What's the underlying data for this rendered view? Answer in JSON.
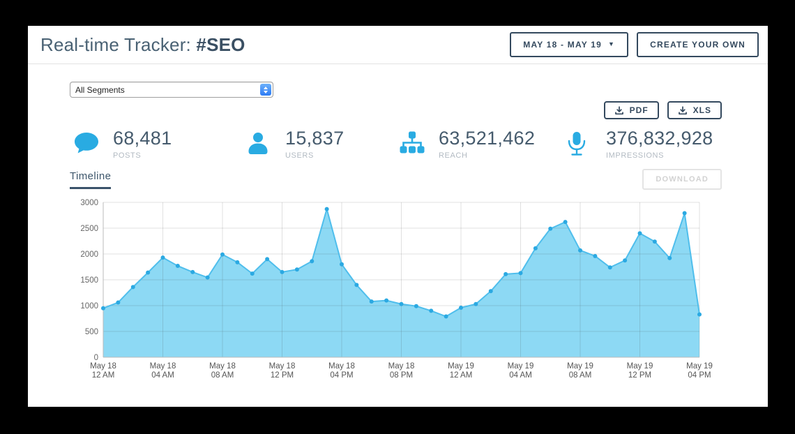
{
  "header": {
    "title_prefix": "Real-time Tracker: ",
    "title_tag": "#SEO",
    "date_range_button": "MAY 18 - MAY 19",
    "date_caret": "▼",
    "create_button": "CREATE YOUR OWN"
  },
  "toolbar": {
    "segments_select_value": "All Segments",
    "pdf_button": "PDF",
    "xls_button": "XLS"
  },
  "stats": [
    {
      "icon": "speech-bubble-icon",
      "value": "68,481",
      "label": "POSTS"
    },
    {
      "icon": "user-icon",
      "value": "15,837",
      "label": "USERS"
    },
    {
      "icon": "sitemap-icon",
      "value": "63,521,462",
      "label": "REACH"
    },
    {
      "icon": "microphone-icon",
      "value": "376,832,928",
      "label": "IMPRESSIONS"
    }
  ],
  "tabs": {
    "timeline": "Timeline",
    "download_button": "DOWNLOAD"
  },
  "colors": {
    "accent_blue": "#29ABE2",
    "navy": "#34495e",
    "title_slate": "#4a6274",
    "stat_value": "#465b6d",
    "stat_label": "#b2bac2"
  },
  "chart_data": {
    "type": "area",
    "title": "Timeline",
    "xlabel": "",
    "ylabel": "",
    "ylim": [
      0,
      3000
    ],
    "grid": true,
    "legend": false,
    "x": [
      "May 18 12 AM",
      "May 18 01 AM",
      "May 18 02 AM",
      "May 18 03 AM",
      "May 18 04 AM",
      "May 18 05 AM",
      "May 18 06 AM",
      "May 18 07 AM",
      "May 18 08 AM",
      "May 18 09 AM",
      "May 18 10 AM",
      "May 18 11 AM",
      "May 18 12 PM",
      "May 18 01 PM",
      "May 18 02 PM",
      "May 18 03 PM",
      "May 18 04 PM",
      "May 18 05 PM",
      "May 18 06 PM",
      "May 18 07 PM",
      "May 18 08 PM",
      "May 18 09 PM",
      "May 18 10 PM",
      "May 18 11 PM",
      "May 19 12 AM",
      "May 19 01 AM",
      "May 19 02 AM",
      "May 19 03 AM",
      "May 19 04 AM",
      "May 19 05 AM",
      "May 19 06 AM",
      "May 19 07 AM",
      "May 19 08 AM",
      "May 19 09 AM",
      "May 19 10 AM",
      "May 19 11 AM",
      "May 19 12 PM",
      "May 19 01 PM",
      "May 19 02 PM",
      "May 19 03 PM",
      "May 19 04 PM"
    ],
    "series": [
      {
        "name": "Posts",
        "values": [
          950,
          1060,
          1360,
          1640,
          1930,
          1770,
          1650,
          1545,
          1990,
          1840,
          1620,
          1900,
          1650,
          1700,
          1860,
          2870,
          1800,
          1400,
          1080,
          1100,
          1030,
          990,
          900,
          790,
          960,
          1030,
          1280,
          1610,
          1630,
          2110,
          2490,
          2620,
          2070,
          1960,
          1740,
          1875,
          2400,
          2240,
          1920,
          2790,
          830
        ]
      }
    ],
    "yticks": [
      0,
      500,
      1000,
      1500,
      2000,
      2500,
      3000
    ],
    "x_tick_every": 4,
    "x_tick_labels": [
      [
        "May 18",
        "12 AM"
      ],
      [
        "May 18",
        "04 AM"
      ],
      [
        "May 18",
        "08 AM"
      ],
      [
        "May 18",
        "12 PM"
      ],
      [
        "May 18",
        "04 PM"
      ],
      [
        "May 18",
        "08 PM"
      ],
      [
        "May 19",
        "12 AM"
      ],
      [
        "May 19",
        "04 AM"
      ],
      [
        "May 19",
        "08 AM"
      ],
      [
        "May 19",
        "12 PM"
      ],
      [
        "May 19",
        "04 PM"
      ]
    ],
    "colors": {
      "fill": "#8DD9F4",
      "line": "#4FBEEC",
      "marker": "#2BA9E2",
      "grid": "rgba(60,60,60,0.16)",
      "axis": "#bbbbbb",
      "tick_text": "#666666"
    }
  }
}
